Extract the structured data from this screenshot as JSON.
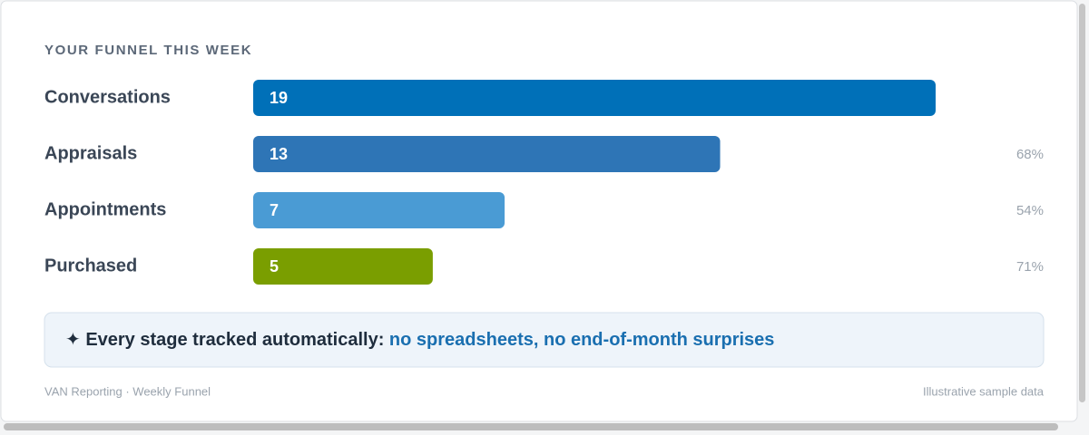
{
  "chart_data": {
    "type": "bar",
    "orientation": "horizontal",
    "title": "YOUR FUNNEL THIS WEEK",
    "categories": [
      "Conversations",
      "Appraisals",
      "Appointments",
      "Purchased"
    ],
    "values": [
      19,
      13,
      7,
      5
    ],
    "colors": [
      "#0070b8",
      "#2e75b6",
      "#4a9bd4",
      "#7a9e00"
    ],
    "rates": [
      null,
      68,
      54,
      71
    ],
    "rate_labels": [
      null,
      "68%",
      "54%",
      "71%"
    ],
    "callout": {
      "lead": "✦ Every stage tracked automatically:",
      "highlight": "no spreadsheets, no end-of-month surprises"
    },
    "footer_left": "VAN Reporting · Weekly Funnel",
    "footer_right": "Illustrative sample data"
  }
}
